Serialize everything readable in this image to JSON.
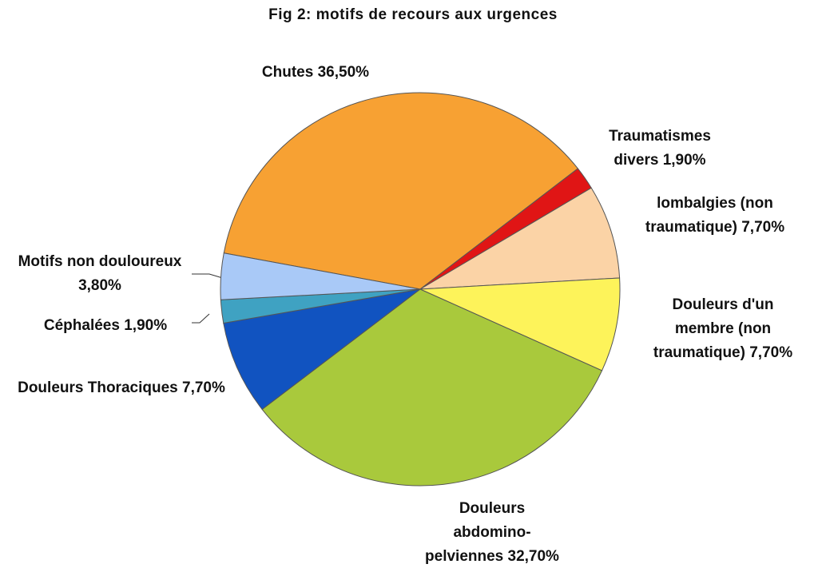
{
  "chart_data": {
    "type": "pie",
    "title": "Fig 2: motifs de recours aux urgences",
    "categories": [
      "Chutes",
      "Traumatismes divers",
      "lombalgies (non traumatique)",
      "Douleurs d'un membre (non traumatique)",
      "Douleurs abdomino-pelviennes",
      "Douleurs Thoraciques",
      "Céphalées",
      "Motifs non douloureux"
    ],
    "values": [
      36.5,
      1.9,
      7.7,
      7.7,
      32.7,
      7.7,
      1.9,
      3.8
    ],
    "value_labels": [
      "36,50%",
      "1,90%",
      "7,70%",
      "7,70%",
      "32,70%",
      "7,70%",
      "1,90%",
      "3,80%"
    ],
    "colors": [
      "#f7a133",
      "#e01515",
      "#fbd3a6",
      "#fdf35a",
      "#a9c93c",
      "#1153c0",
      "#3fa2c2",
      "#a9c9f7"
    ]
  }
}
